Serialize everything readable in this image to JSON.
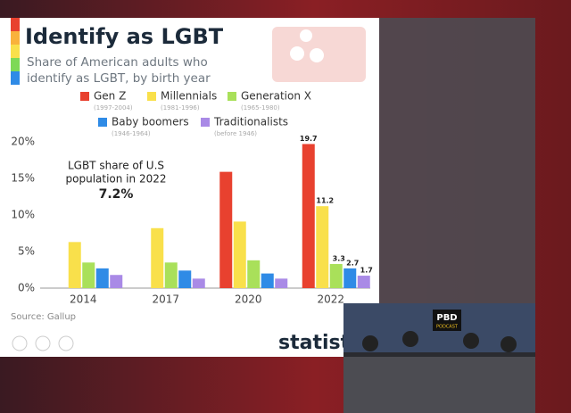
{
  "chart_data": {
    "type": "bar",
    "title": "Identify as LGBT",
    "subtitle": [
      "Share of American adults who",
      "identify as LGBT, by birth year"
    ],
    "categories": [
      "2014",
      "2017",
      "2020",
      "2022"
    ],
    "series": [
      {
        "name": "Gen Z",
        "years": "(1997-2004)",
        "color": "#e8412f",
        "values": [
          null,
          null,
          15.9,
          19.7
        ],
        "value_labels": [
          null,
          null,
          null,
          "19.7"
        ]
      },
      {
        "name": "Millennials",
        "years": "(1981-1996)",
        "color": "#f9e04b",
        "values": [
          6.3,
          8.2,
          9.1,
          11.2
        ],
        "value_labels": [
          null,
          null,
          null,
          "11.2"
        ]
      },
      {
        "name": "Generation X",
        "years": "(1965-1980)",
        "color": "#a9e05a",
        "values": [
          3.5,
          3.5,
          3.8,
          3.3
        ],
        "value_labels": [
          null,
          null,
          null,
          "3.3"
        ]
      },
      {
        "name": "Baby boomers",
        "years": "(1946-1964)",
        "color": "#2f8be6",
        "values": [
          2.7,
          2.4,
          2.0,
          2.7
        ],
        "value_labels": [
          null,
          null,
          null,
          "2.7"
        ]
      },
      {
        "name": "Traditionalists",
        "years": "(before 1946)",
        "color": "#a98ae6",
        "values": [
          1.8,
          1.3,
          1.3,
          1.7
        ],
        "value_labels": [
          null,
          null,
          null,
          "1.7"
        ]
      }
    ],
    "ylim": [
      0,
      20
    ],
    "yticks": [
      {
        "value": 0,
        "label": "0%"
      },
      {
        "value": 5,
        "label": "5%"
      },
      {
        "value": 10,
        "label": "10%"
      },
      {
        "value": 15,
        "label": "15%"
      },
      {
        "value": 20,
        "label": "20%"
      }
    ],
    "grid": false,
    "annotation": [
      "LGBT share of U.S",
      "population in 2022",
      "7.2%"
    ],
    "source": "Source: Gallup",
    "brand": "statista"
  },
  "overlay": {
    "logo": "PBD",
    "sublogo": "PODCAST"
  }
}
